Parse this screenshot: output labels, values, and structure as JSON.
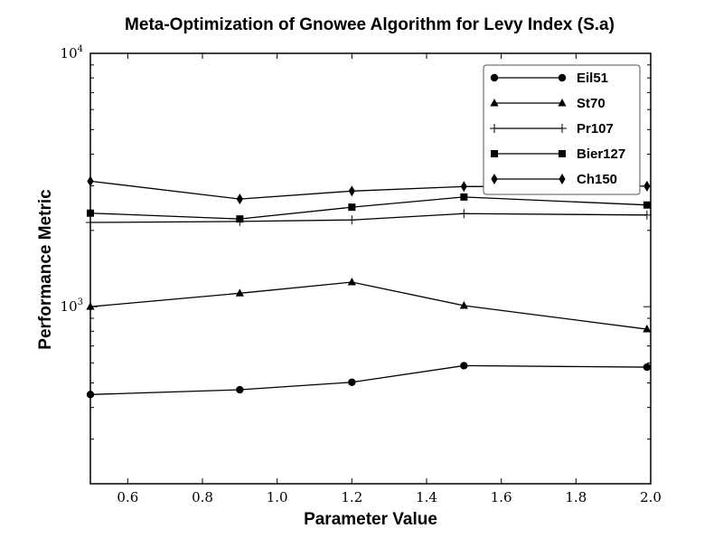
{
  "chart_data": {
    "type": "line",
    "title": "Meta-Optimization of Gnowee Algorithm for Levy Index (S.a)",
    "xlabel": "Parameter Value",
    "ylabel": "Performance Metric",
    "xlim": [
      0.5,
      2.0
    ],
    "ylim": [
      200,
      10000
    ],
    "y_scale": "log",
    "grid": false,
    "legend_position": "top-right",
    "x_ticks": [
      0.6,
      0.8,
      1.0,
      1.2,
      1.4,
      1.6,
      1.8,
      2.0
    ],
    "x_tick_labels": [
      "0.6",
      "0.8",
      "1.0",
      "1.2",
      "1.4",
      "1.6",
      "1.8",
      "2.0"
    ],
    "y_ticks": [
      {
        "value": 1000,
        "base": "10",
        "exp": "3"
      },
      {
        "value": 10000,
        "base": "10",
        "exp": "4"
      }
    ],
    "x": [
      0.5,
      0.9,
      1.2,
      1.5,
      1.99
    ],
    "series": [
      {
        "name": "Eil51",
        "marker": "circle",
        "values": [
          450,
          470,
          503,
          585,
          577
        ]
      },
      {
        "name": "St70",
        "marker": "triangle",
        "values": [
          1000,
          1130,
          1250,
          1010,
          815
        ]
      },
      {
        "name": "Pr107",
        "marker": "plus",
        "values": [
          2150,
          2170,
          2200,
          2330,
          2300
        ]
      },
      {
        "name": "Bier127",
        "marker": "square",
        "values": [
          2340,
          2220,
          2470,
          2710,
          2520
        ]
      },
      {
        "name": "Ch150",
        "marker": "diamond",
        "values": [
          3130,
          2660,
          2860,
          2980,
          2990
        ]
      }
    ],
    "colors": {
      "line": "#000000",
      "frame": "#000000",
      "legend_border": "#555555"
    }
  }
}
